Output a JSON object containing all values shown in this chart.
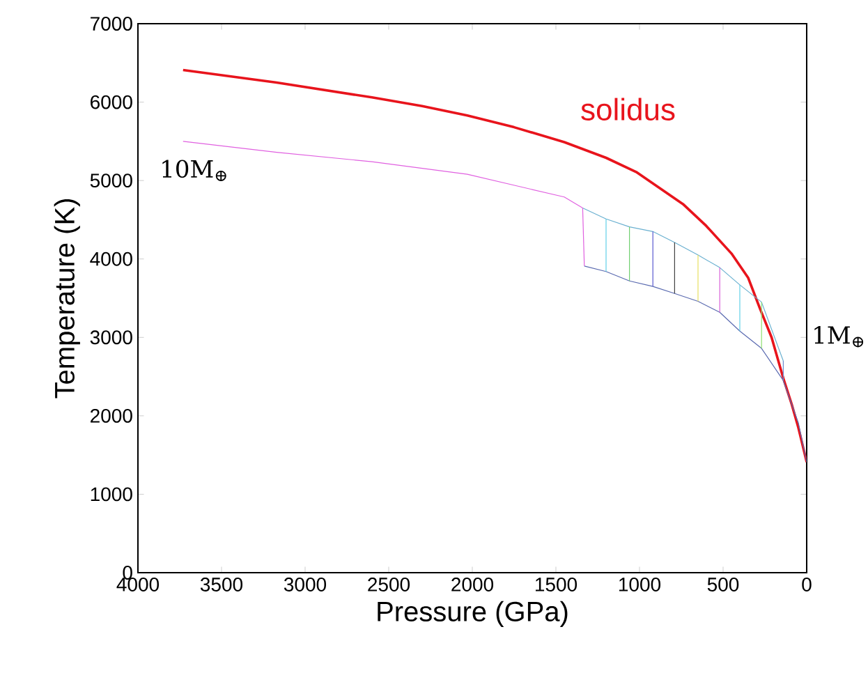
{
  "chart_data": {
    "type": "line",
    "xlabel": "Pressure (GPa)",
    "ylabel": "Temperature (K)",
    "xlim": [
      4000,
      0
    ],
    "ylim": [
      0,
      7000
    ],
    "xticks": [
      4000,
      3500,
      3000,
      2500,
      2000,
      1500,
      1000,
      500,
      0
    ],
    "yticks": [
      0,
      1000,
      2000,
      3000,
      4000,
      5000,
      6000,
      7000
    ],
    "grid": false,
    "legend": false,
    "marker": "none",
    "line_style": "solid",
    "annotations": [
      "10M$_{⊕}$",
      "1M$_{⊕}$"
    ],
    "series": [
      {
        "name": "solidus",
        "color": "#e8141c",
        "x": [
          3730,
          3450,
          3170,
          2600,
          2300,
          2030,
          1750,
          1450,
          1200,
          1020,
          740,
          600,
          450,
          350,
          280,
          210,
          140,
          90,
          50,
          0
        ],
        "values": [
          6410,
          6330,
          6250,
          6060,
          5950,
          5830,
          5680,
          5490,
          5290,
          5110,
          4700,
          4420,
          4070,
          3760,
          3370,
          3000,
          2480,
          2150,
          1850,
          1410
        ]
      },
      {
        "color": "#e060e0",
        "x": [
          3730,
          3170,
          2600,
          2030,
          1450,
          1340
        ],
        "values": [
          5500,
          5360,
          5240,
          5080,
          4790,
          4650
        ]
      },
      {
        "color": "#6ab0d0",
        "x": [
          1340,
          1200,
          1060,
          920,
          790,
          650,
          520,
          400,
          270,
          140
        ],
        "values": [
          4650,
          4510,
          4410,
          4350,
          4210,
          4050,
          3890,
          3670,
          3450,
          2700
        ]
      },
      {
        "color": "#5a6ab0",
        "x": [
          1330,
          1200,
          1060,
          920,
          790,
          650,
          520,
          400,
          270,
          140,
          50,
          0
        ],
        "values": [
          3910,
          3840,
          3720,
          3650,
          3560,
          3460,
          3320,
          3080,
          2860,
          2450,
          1910,
          1410
        ]
      },
      {
        "color": "#e060e0",
        "x": [
          1340,
          1330
        ],
        "values": [
          4650,
          3910
        ]
      },
      {
        "color": "#60d0e8",
        "x": [
          1200,
          1200
        ],
        "values": [
          4510,
          3840
        ]
      },
      {
        "color": "#70d070",
        "x": [
          1060,
          1060
        ],
        "values": [
          4410,
          3720
        ]
      },
      {
        "color": "#5a5ad0",
        "x": [
          920,
          920
        ],
        "values": [
          4350,
          3650
        ]
      },
      {
        "color": "#404040",
        "x": [
          790,
          790
        ],
        "values": [
          4210,
          3560
        ]
      },
      {
        "color": "#e8e060",
        "x": [
          650,
          650
        ],
        "values": [
          4050,
          3460
        ]
      },
      {
        "color": "#d860d8",
        "x": [
          520,
          520
        ],
        "values": [
          3890,
          3320
        ]
      },
      {
        "color": "#60d0e8",
        "x": [
          400,
          400
        ],
        "values": [
          3670,
          3080
        ]
      },
      {
        "color": "#90e070",
        "x": [
          270,
          270
        ],
        "values": [
          3450,
          2860
        ]
      },
      {
        "color": "#6a8ad0",
        "x": [
          140,
          140
        ],
        "values": [
          2700,
          2450
        ]
      }
    ]
  }
}
